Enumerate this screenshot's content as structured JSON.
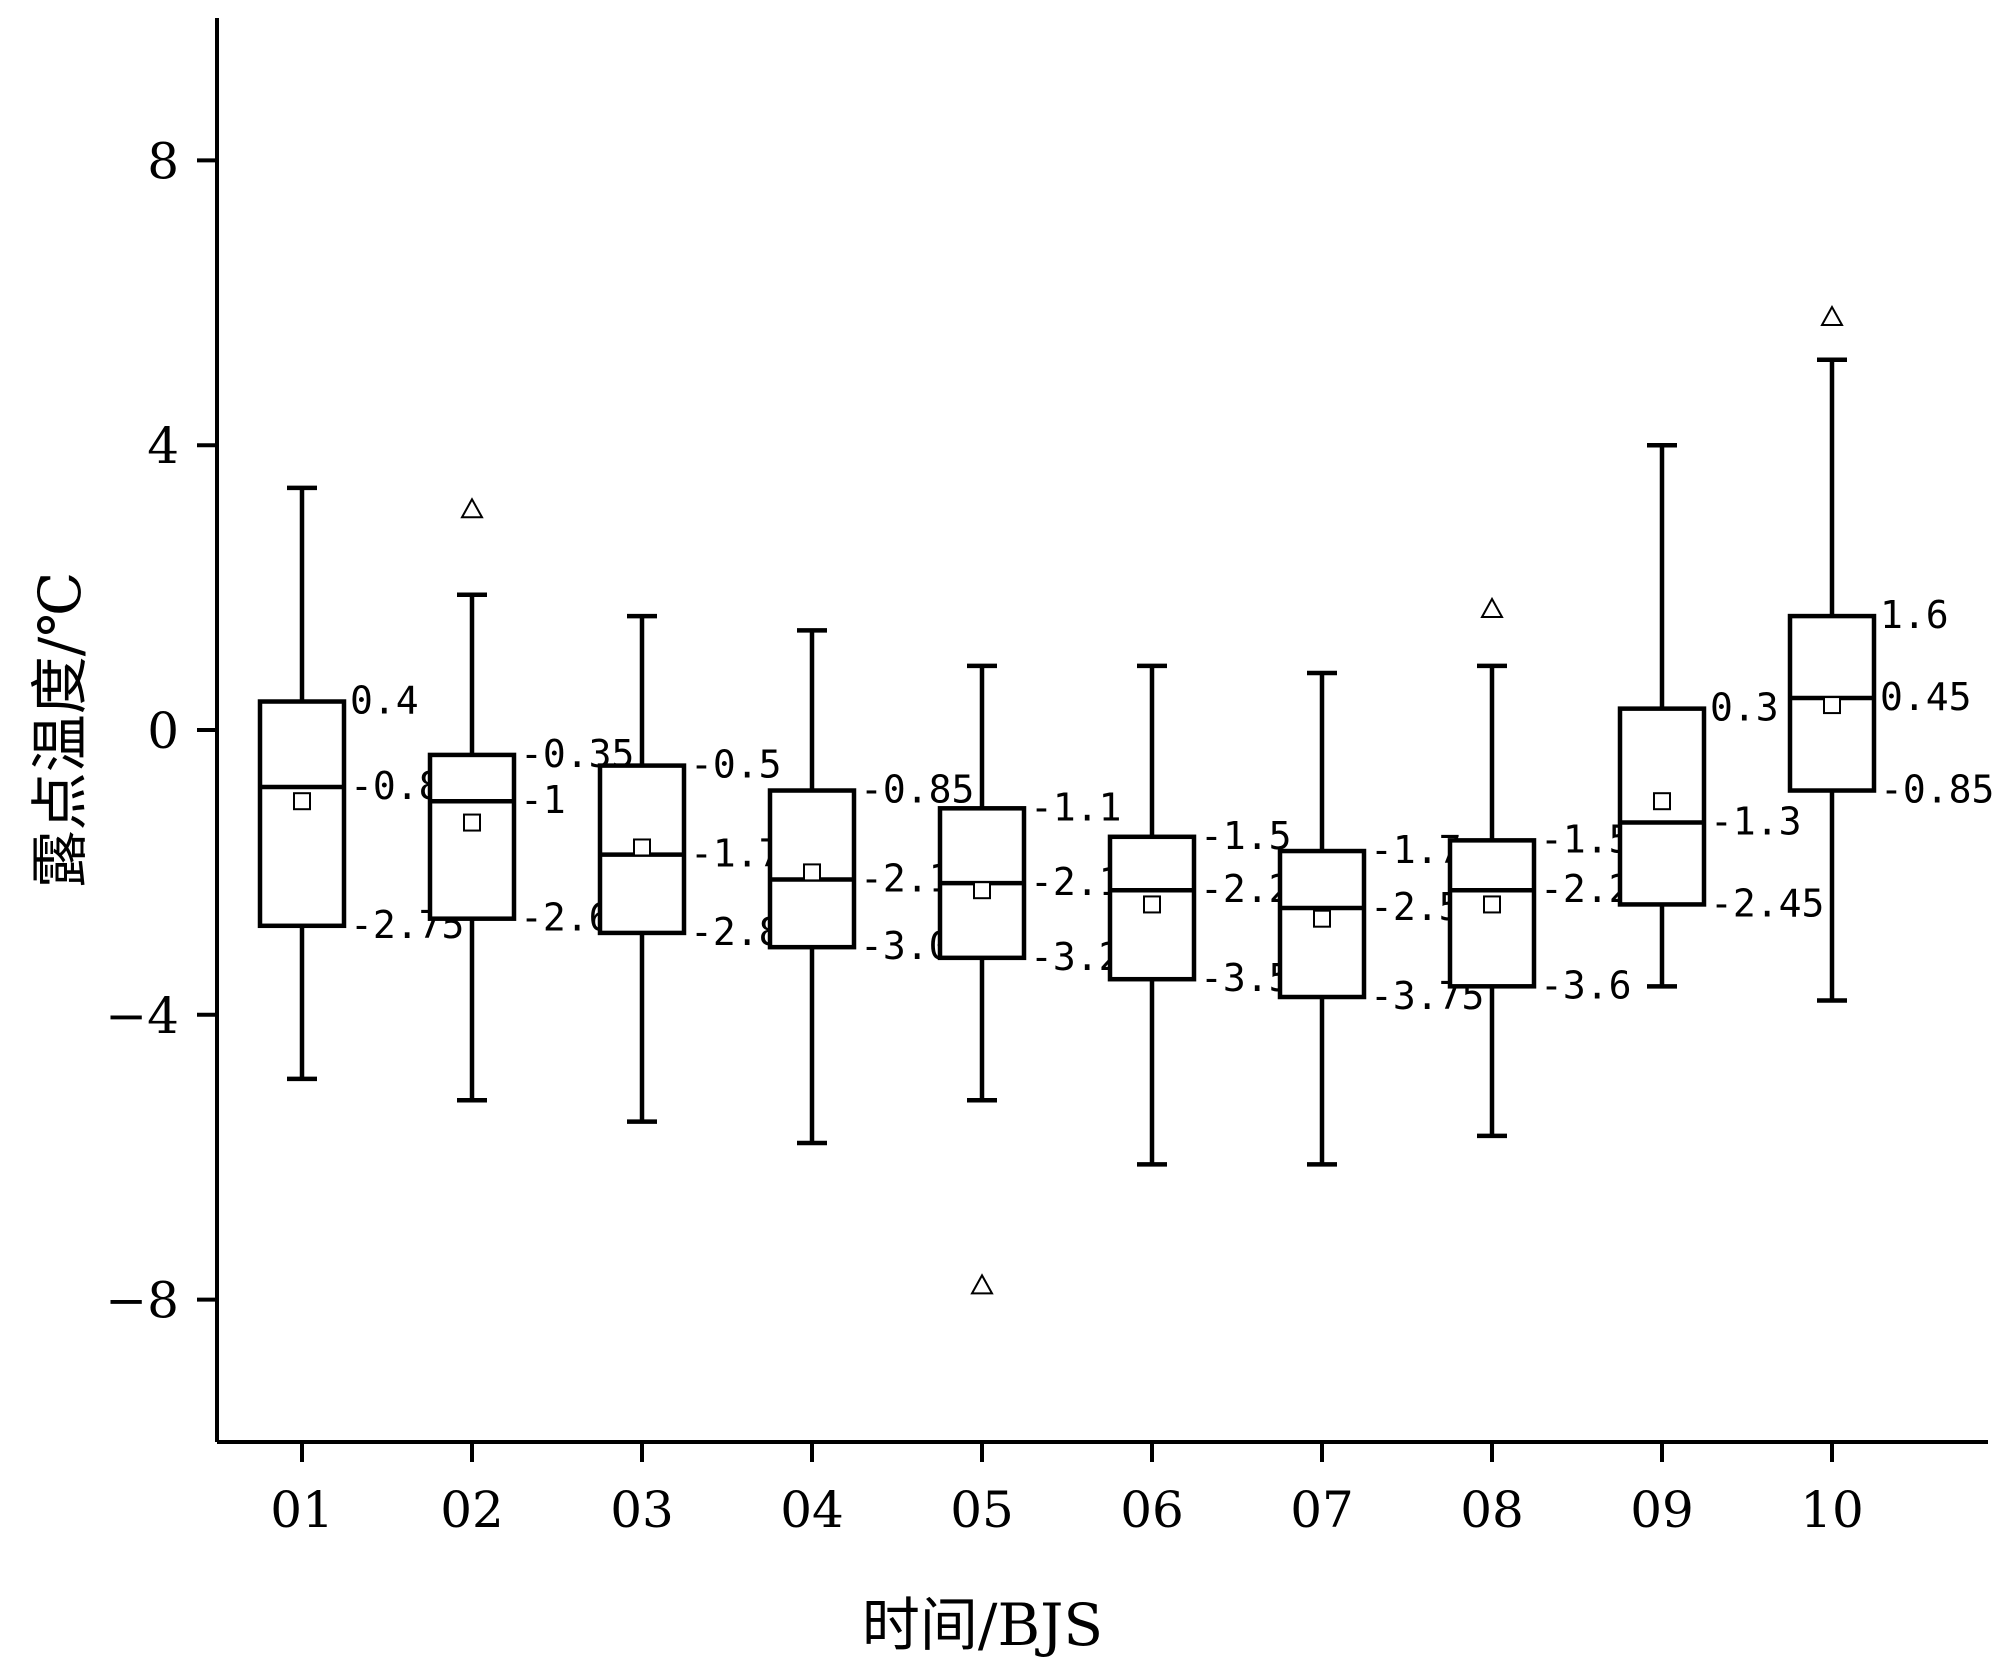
{
  "chart_data": {
    "type": "box",
    "xlabel": "时间/BJS",
    "ylabel": "露点温度/℃",
    "ylim": [
      -10,
      10
    ],
    "yticks": [
      -8,
      -4,
      0,
      4,
      8
    ],
    "ytick_labels": [
      "−8",
      "−4",
      "0",
      "4",
      "8"
    ],
    "categories": [
      "01",
      "02",
      "03",
      "04",
      "05",
      "06",
      "07",
      "08",
      "09",
      "10"
    ],
    "boxes": [
      {
        "x": "01",
        "whisker_low": -4.9,
        "q1": -2.75,
        "median": -0.8,
        "q3": 0.4,
        "whisker_high": 3.4,
        "mean": -1.0,
        "outliers": [],
        "labels": {
          "q3": "0.4",
          "median": "-0.8",
          "q1": "-2.75"
        }
      },
      {
        "x": "02",
        "whisker_low": -5.2,
        "q1": -2.65,
        "median": -1.0,
        "q3": -0.35,
        "whisker_high": 1.9,
        "mean": -1.3,
        "outliers": [
          3.1
        ],
        "labels": {
          "q3": "-0.35",
          "median": "-1",
          "q1": "-2.65"
        }
      },
      {
        "x": "03",
        "whisker_low": -5.5,
        "q1": -2.85,
        "median": -1.75,
        "q3": -0.5,
        "whisker_high": 1.6,
        "mean": -1.65,
        "outliers": [],
        "labels": {
          "q3": "-0.5",
          "median": "-1.75",
          "q1": "-2.85"
        }
      },
      {
        "x": "04",
        "whisker_low": -5.8,
        "q1": -3.05,
        "median": -2.1,
        "q3": -0.85,
        "whisker_high": 1.4,
        "mean": -2.0,
        "outliers": [],
        "labels": {
          "q3": "-0.85",
          "median": "-2.1",
          "q1": "-3.05"
        }
      },
      {
        "x": "05",
        "whisker_low": -5.2,
        "q1": -3.2,
        "median": -2.15,
        "q3": -1.1,
        "whisker_high": 0.9,
        "mean": -2.25,
        "outliers": [
          -7.8
        ],
        "labels": {
          "q3": "-1.1",
          "median": "-2.15",
          "q1": "-3.2"
        }
      },
      {
        "x": "06",
        "whisker_low": -6.1,
        "q1": -3.5,
        "median": -2.25,
        "q3": -1.5,
        "whisker_high": 0.9,
        "mean": -2.45,
        "outliers": [],
        "labels": {
          "q3": "-1.5",
          "median": "-2.25",
          "q1": "-3.5"
        }
      },
      {
        "x": "07",
        "whisker_low": -6.1,
        "q1": -3.75,
        "median": -2.5,
        "q3": -1.7,
        "whisker_high": 0.8,
        "mean": -2.65,
        "outliers": [],
        "labels": {
          "q3": "-1.7",
          "median": "-2.5",
          "q1": "-3.75"
        }
      },
      {
        "x": "08",
        "whisker_low": -5.7,
        "q1": -3.6,
        "median": -2.25,
        "q3": -1.55,
        "whisker_high": 0.9,
        "mean": -2.45,
        "outliers": [
          1.7
        ],
        "labels": {
          "q3": "-1.55",
          "median": "-2.25",
          "q1": "-3.6"
        }
      },
      {
        "x": "09",
        "whisker_low": -3.6,
        "q1": -2.45,
        "median": -1.3,
        "q3": 0.3,
        "whisker_high": 4.0,
        "mean": -1.0,
        "outliers": [],
        "labels": {
          "q3": "0.3",
          "median": "-1.3",
          "q1": "-2.45"
        }
      },
      {
        "x": "10",
        "whisker_low": -3.8,
        "q1": -0.85,
        "median": 0.45,
        "q3": 1.6,
        "whisker_high": 5.2,
        "mean": 0.35,
        "outliers": [
          5.8
        ],
        "labels": {
          "q3": "1.6",
          "median": "0.45",
          "q1": "-0.85"
        }
      }
    ],
    "grid": false,
    "legend": "none"
  }
}
